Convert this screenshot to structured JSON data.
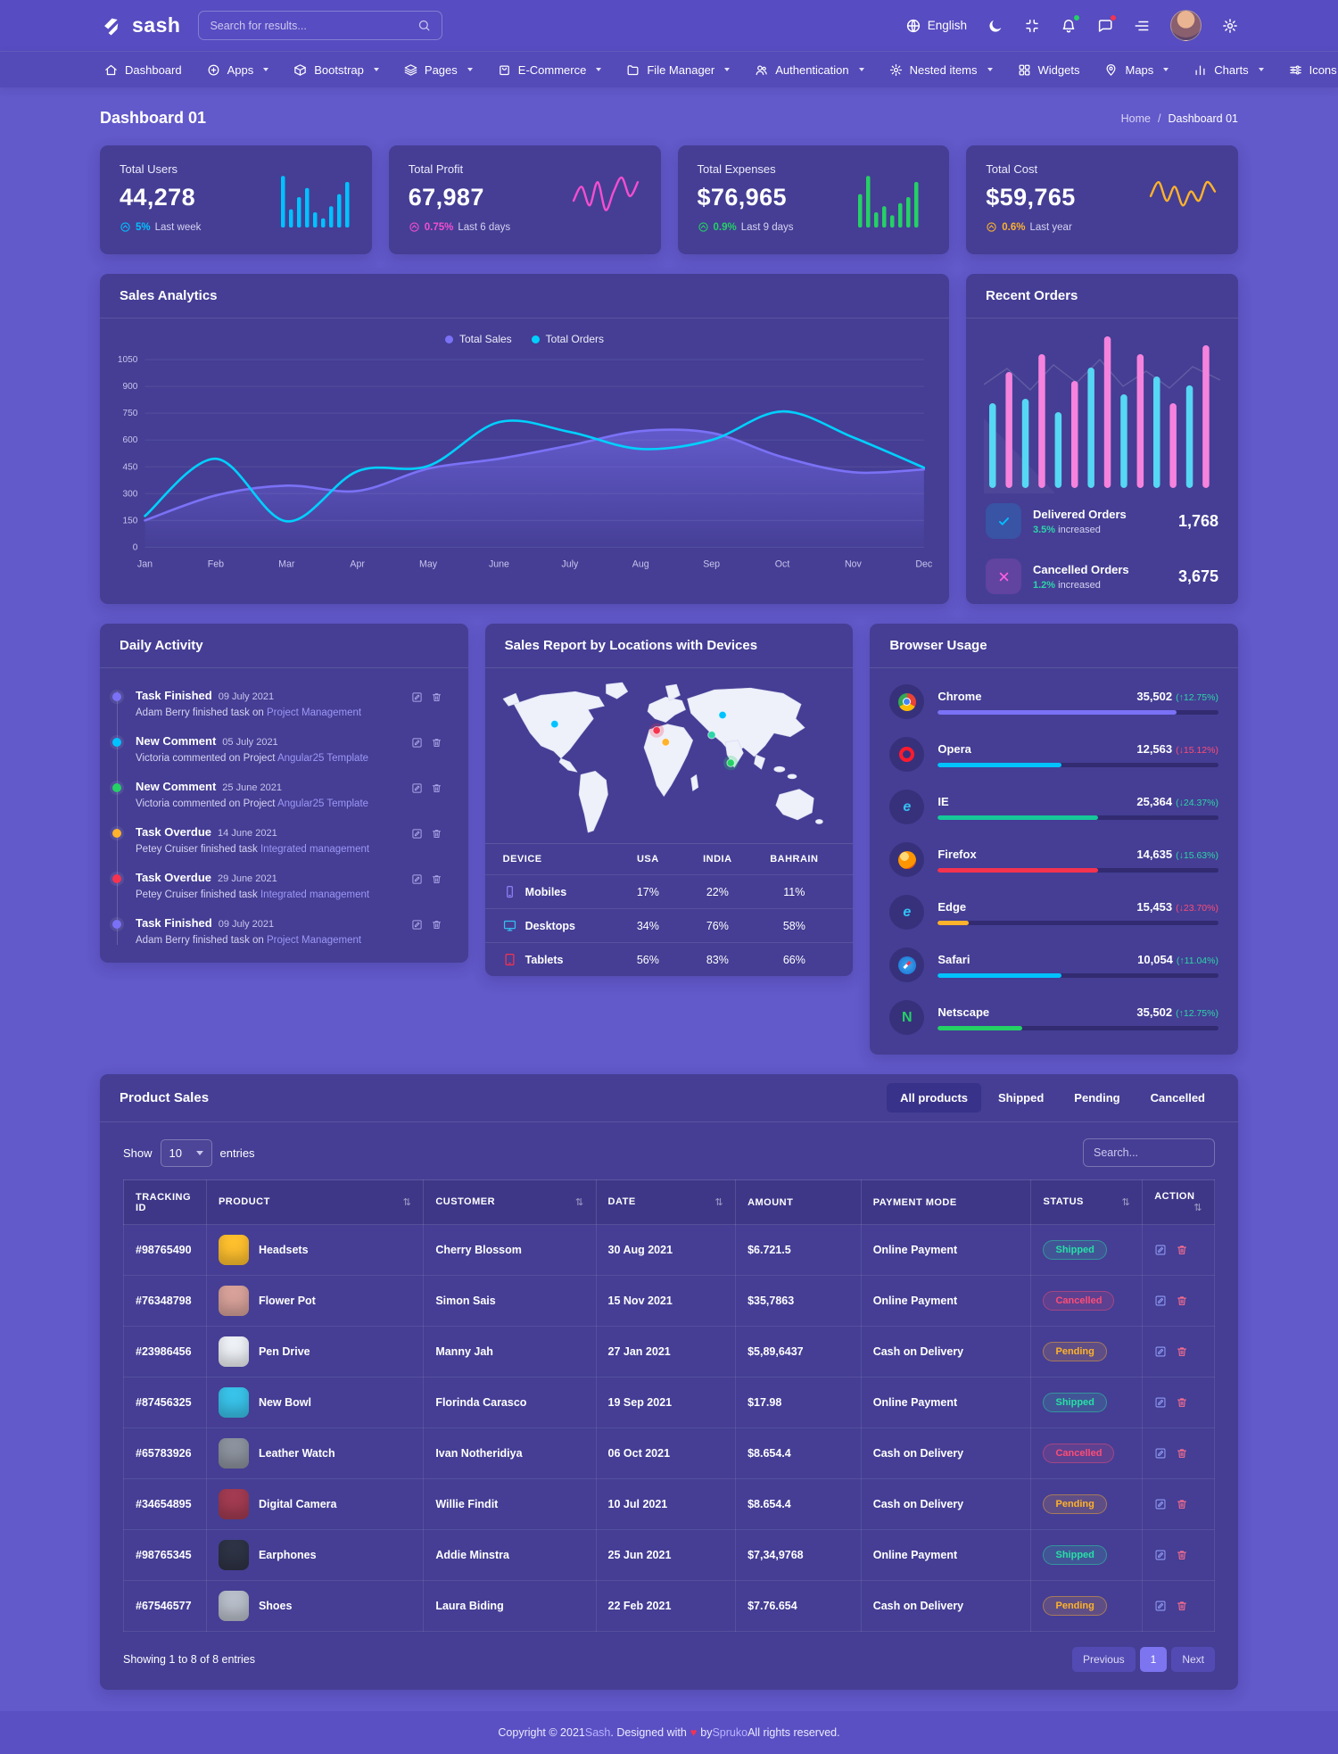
{
  "header": {
    "logo": "sash",
    "search_placeholder": "Search for results...",
    "language": "English"
  },
  "nav": {
    "items": [
      {
        "label": "Dashboard",
        "icon": "home",
        "caret": false
      },
      {
        "label": "Apps",
        "icon": "apps",
        "caret": true
      },
      {
        "label": "Bootstrap",
        "icon": "package",
        "caret": true
      },
      {
        "label": "Pages",
        "icon": "layers",
        "caret": true
      },
      {
        "label": "E-Commerce",
        "icon": "bag",
        "caret": true
      },
      {
        "label": "File Manager",
        "icon": "folder",
        "caret": true
      },
      {
        "label": "Authentication",
        "icon": "users",
        "caret": true
      },
      {
        "label": "Nested items",
        "icon": "nested",
        "caret": true
      },
      {
        "label": "Widgets",
        "icon": "widgets",
        "caret": false
      },
      {
        "label": "Maps",
        "icon": "map-pin",
        "caret": true
      },
      {
        "label": "Charts",
        "icon": "chart-bars",
        "caret": true
      },
      {
        "label": "Icons",
        "icon": "sliders",
        "caret": true
      }
    ]
  },
  "page": {
    "title": "Dashboard 01",
    "breadcrumb": {
      "home": "Home",
      "sep": "/",
      "current": "Dashboard 01"
    }
  },
  "stats": [
    {
      "label": "Total Users",
      "value": "44,278",
      "delta": "5%",
      "period": "Last week",
      "color": "#00c2ff",
      "spark": "bars",
      "values": [
        34,
        12,
        20,
        26,
        10,
        6,
        14,
        22,
        30
      ]
    },
    {
      "label": "Total Profit",
      "value": "67,987",
      "delta": "0.75%",
      "period": "Last 6 days",
      "color": "#f54ed0",
      "spark": "line",
      "values": [
        5,
        8,
        4,
        9,
        3,
        7,
        10,
        6,
        9
      ]
    },
    {
      "label": "Total Expenses",
      "value": "$76,965",
      "delta": "0.9%",
      "period": "Last 9 days",
      "color": "#24d165",
      "spark": "bars",
      "values": [
        22,
        34,
        10,
        14,
        8,
        16,
        20,
        30
      ]
    },
    {
      "label": "Total Cost",
      "value": "$59,765",
      "delta": "0.6%",
      "period": "Last year",
      "color": "#ffb22b",
      "spark": "line",
      "values": [
        6,
        9,
        5,
        8,
        4,
        7,
        5,
        9,
        7
      ]
    }
  ],
  "sales_analytics": {
    "title": "Sales Analytics"
  },
  "chart_data": [
    {
      "name": "sales_analytics",
      "type": "line",
      "title": "Sales Analytics",
      "x": [
        "Jan",
        "Feb",
        "Mar",
        "Apr",
        "May",
        "June",
        "July",
        "Aug",
        "Sep",
        "Oct",
        "Nov",
        "Dec"
      ],
      "ylim": [
        0,
        1050
      ],
      "yticks": [
        0,
        150,
        300,
        450,
        600,
        750,
        900,
        1050
      ],
      "grid": true,
      "legend_position": "top",
      "series": [
        {
          "name": "Total Sales",
          "color": "#7a71f6",
          "fill": true,
          "values": [
            150,
            290,
            345,
            315,
            440,
            495,
            570,
            650,
            640,
            505,
            420,
            435
          ]
        },
        {
          "name": "Total Orders",
          "color": "#00d0fe",
          "fill": false,
          "values": [
            175,
            495,
            145,
            425,
            455,
            700,
            645,
            550,
            600,
            760,
            615,
            445
          ]
        }
      ]
    },
    {
      "name": "recent_orders_bars",
      "type": "bar",
      "values": [
        95,
        130,
        100,
        150,
        85,
        120,
        135,
        170,
        105,
        150,
        125,
        95,
        115,
        160
      ],
      "colors": [
        "#56d7f3",
        "#f583dd"
      ]
    },
    {
      "name": "browser_usage",
      "type": "bar",
      "categories": [
        "Chrome",
        "Opera",
        "IE",
        "Firefox",
        "Edge",
        "Safari",
        "Netscape"
      ],
      "values": [
        35502,
        12563,
        25364,
        14635,
        15453,
        10054,
        35502
      ]
    }
  ],
  "recent_orders": {
    "title": "Recent Orders",
    "items": [
      {
        "label": "Delivered Orders",
        "delta": "3.5%",
        "delta_color": "#2dd5a9",
        "suffix": " increased",
        "value": "1,768",
        "icon": "check",
        "color": "#00c2ff"
      },
      {
        "label": "Cancelled Orders",
        "delta": "1.2%",
        "delta_color": "#2dd5a9",
        "suffix": " increased",
        "value": "3,675",
        "icon": "x",
        "color": "#f75fde"
      }
    ]
  },
  "daily_activity": {
    "title": "Daily Activity",
    "items": [
      {
        "title": "Task Finished",
        "date": "09 July 2021",
        "text": "Adam Berry finished task on ",
        "link": "Project Management",
        "dot": "#7a71f6"
      },
      {
        "title": "New Comment",
        "date": "05 July 2021",
        "text": "Victoria commented on Project ",
        "link": "Angular25 Template",
        "dot": "#00c2ff"
      },
      {
        "title": "New Comment",
        "date": "25 June 2021",
        "text": "Victoria commented on Project ",
        "link": "Angular25 Template",
        "dot": "#24d165"
      },
      {
        "title": "Task Overdue",
        "date": "14 June 2021",
        "text": "Petey Cruiser finished task ",
        "link": "Integrated management",
        "dot": "#ffb22b"
      },
      {
        "title": "Task Overdue",
        "date": "29 June 2021",
        "text": "Petey Cruiser finished task ",
        "link": "Integrated management",
        "dot": "#f5334f"
      },
      {
        "title": "Task Finished",
        "date": "09 July 2021",
        "text": "Adam Berry finished task on ",
        "link": "Project Management",
        "dot": "#7a71f6"
      }
    ]
  },
  "sales_report": {
    "title": "Sales Report by Locations with Devices",
    "markers": [
      {
        "color": "#00c2ff",
        "x": 63,
        "y": 50,
        "halo": false
      },
      {
        "color": "#00c2ff",
        "x": 249,
        "y": 40,
        "halo": false
      },
      {
        "color": "#f5334f",
        "x": 176,
        "y": 57,
        "halo": true
      },
      {
        "color": "#ffb22b",
        "x": 186,
        "y": 70,
        "halo": false
      },
      {
        "color": "#2dd5a9",
        "x": 237,
        "y": 62,
        "halo": false
      },
      {
        "color": "#24d165",
        "x": 258,
        "y": 93,
        "halo": true
      }
    ],
    "columns": [
      "DEVICE",
      "USA",
      "INDIA",
      "BAHRAIN"
    ],
    "rows": [
      {
        "device": "Mobiles",
        "icon": "phone",
        "icon_color": "#8f7ff7",
        "usa": "17%",
        "india": "22%",
        "bahrain": "11%"
      },
      {
        "device": "Desktops",
        "icon": "desktop",
        "icon_color": "#35bff0",
        "usa": "34%",
        "india": "76%",
        "bahrain": "58%"
      },
      {
        "device": "Tablets",
        "icon": "tablet",
        "icon_color": "#f5334f",
        "usa": "56%",
        "india": "83%",
        "bahrain": "66%"
      }
    ]
  },
  "browser_usage": {
    "title": "Browser Usage",
    "rows": [
      {
        "name": "Chrome",
        "value": "35,502",
        "delta": "(↑12.75%)",
        "delta_color": "#2dd5a9",
        "bar_color": "#7a71f6",
        "bar_pct": 85
      },
      {
        "name": "Opera",
        "value": "12,563",
        "delta": "(↓15.12%)",
        "delta_color": "#fb4d77",
        "bar_color": "#00c2ff",
        "bar_pct": 44
      },
      {
        "name": "IE",
        "value": "25,364",
        "delta": "(↓24.37%)",
        "delta_color": "#2dd5a9",
        "bar_color": "#16c79a",
        "bar_pct": 57
      },
      {
        "name": "Firefox",
        "value": "14,635",
        "delta": "(↓15.63%)",
        "delta_color": "#2dd5a9",
        "bar_color": "#f5334f",
        "bar_pct": 57
      },
      {
        "name": "Edge",
        "value": "15,453",
        "delta": "(↓23.70%)",
        "delta_color": "#fb4d77",
        "bar_color": "#ffb22b",
        "bar_pct": 11
      },
      {
        "name": "Safari",
        "value": "10,054",
        "delta": "(↑11.04%)",
        "delta_color": "#2dd5a9",
        "bar_color": "#00c2ff",
        "bar_pct": 44
      },
      {
        "name": "Netscape",
        "value": "35,502",
        "delta": "(↑12.75%)",
        "delta_color": "#2dd5a9",
        "bar_color": "#24d165",
        "bar_pct": 30
      }
    ]
  },
  "product_sales": {
    "title": "Product Sales",
    "tabs": [
      {
        "label": "All products",
        "active": true
      },
      {
        "label": "Shipped",
        "active": false
      },
      {
        "label": "Pending",
        "active": false
      },
      {
        "label": "Cancelled",
        "active": false
      }
    ],
    "show_label": "Show",
    "show_value": "10",
    "entries_label": "entries",
    "search_placeholder": "Search...",
    "sort_icon": "⇅",
    "columns": [
      {
        "label": "TRACKING ID",
        "sort": false,
        "w": "7.6%"
      },
      {
        "label": "PRODUCT",
        "sort": true,
        "w": "19.9%"
      },
      {
        "label": "CUSTOMER",
        "sort": true,
        "w": "15.8%"
      },
      {
        "label": "DATE",
        "sort": true,
        "w": "12.8%"
      },
      {
        "label": "AMOUNT",
        "sort": false,
        "w": "11.5%"
      },
      {
        "label": "PAYMENT MODE",
        "sort": false,
        "w": "15.6%"
      },
      {
        "label": "STATUS",
        "sort": true,
        "w": "10.2%"
      },
      {
        "label": "ACTION",
        "sort": true,
        "w": "6.6%"
      }
    ],
    "rows": [
      {
        "id": "#98765490",
        "product": "Headsets",
        "pcolor": "#ffc02e",
        "customer": "Cherry Blossom",
        "date": "30 Aug 2021",
        "amount": "$6.721.5",
        "payment": "Online Payment",
        "status": "Shipped"
      },
      {
        "id": "#76348798",
        "product": "Flower Pot",
        "pcolor": "#d8a29a",
        "customer": "Simon Sais",
        "date": "15 Nov 2021",
        "amount": "$35,7863",
        "payment": "Online Payment",
        "status": "Cancelled"
      },
      {
        "id": "#23986456",
        "product": "Pen Drive",
        "pcolor": "#eef1f6",
        "customer": "Manny Jah",
        "date": "27 Jan 2021",
        "amount": "$5,89,6437",
        "payment": "Cash on Delivery",
        "status": "Pending"
      },
      {
        "id": "#87456325",
        "product": "New Bowl",
        "pcolor": "#39c3ea",
        "customer": "Florinda Carasco",
        "date": "19 Sep 2021",
        "amount": "$17.98",
        "payment": "Online Payment",
        "status": "Shipped"
      },
      {
        "id": "#65783926",
        "product": "Leather Watch",
        "pcolor": "#8d939e",
        "customer": "Ivan Notheridiya",
        "date": "06 Oct 2021",
        "amount": "$8.654.4",
        "payment": "Cash on Delivery",
        "status": "Cancelled"
      },
      {
        "id": "#34654895",
        "product": "Digital Camera",
        "pcolor": "#a33b52",
        "customer": "Willie Findit",
        "date": "10 Jul 2021",
        "amount": "$8.654.4",
        "payment": "Cash on Delivery",
        "status": "Pending"
      },
      {
        "id": "#98765345",
        "product": "Earphones",
        "pcolor": "#2e3345",
        "customer": "Addie Minstra",
        "date": "25 Jun 2021",
        "amount": "$7,34,9768",
        "payment": "Online Payment",
        "status": "Shipped"
      },
      {
        "id": "#67546577",
        "product": "Shoes",
        "pcolor": "#b9bfca",
        "customer": "Laura Biding",
        "date": "22 Feb 2021",
        "amount": "$7.76.654",
        "payment": "Cash on Delivery",
        "status": "Pending"
      }
    ],
    "summary": "Showing 1 to 8 of 8 entries",
    "pagination": {
      "prev": "Previous",
      "page": "1",
      "next": "Next"
    }
  },
  "footer": {
    "prefix": "Copyright © 2021 ",
    "brand": "Sash",
    "mid1": ". Designed with ",
    "heart": "♥",
    "mid2": " by ",
    "author": "Spruko",
    "suffix": " All rights reserved."
  }
}
